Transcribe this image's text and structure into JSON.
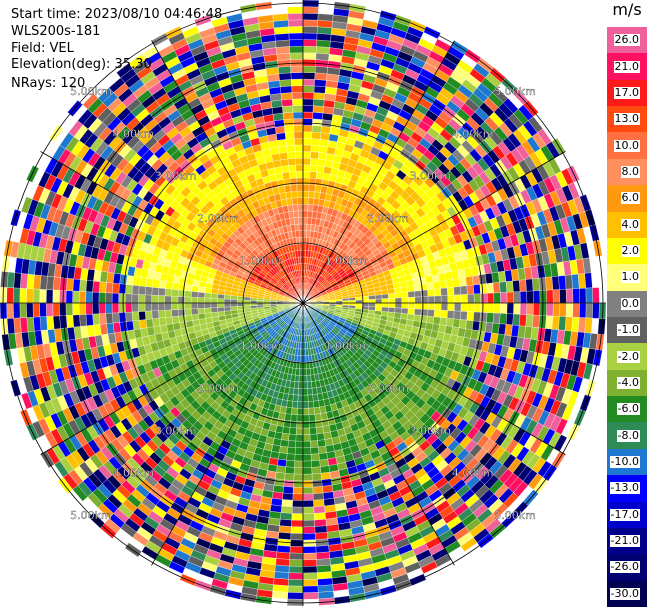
{
  "header": {
    "start_time": "Start time: 2023/08/10 04:46:48",
    "instrument": "WLS200s-181",
    "field": "Field: VEL",
    "elevation": "Elevation(deg): 35.30",
    "nrays": "NRays: 120"
  },
  "legend": {
    "unit": "m/s",
    "bins": [
      {
        "label": "26.0",
        "color": "#f0609a"
      },
      {
        "label": "21.0",
        "color": "#ff1060"
      },
      {
        "label": "17.0",
        "color": "#ff1a1a"
      },
      {
        "label": "13.0",
        "color": "#ff4a10"
      },
      {
        "label": "10.0",
        "color": "#ff7040"
      },
      {
        "label": "8.0",
        "color": "#ff9060"
      },
      {
        "label": "6.0",
        "color": "#ff9a10"
      },
      {
        "label": "4.0",
        "color": "#ffc000"
      },
      {
        "label": "2.0",
        "color": "#ffff00"
      },
      {
        "label": "1.0",
        "color": "#ffff7a"
      },
      {
        "label": "0.0",
        "color": "#808080"
      },
      {
        "label": "-1.0",
        "color": "#606060"
      },
      {
        "label": "-2.0",
        "color": "#a8d040"
      },
      {
        "label": "-4.0",
        "color": "#80b030"
      },
      {
        "label": "-6.0",
        "color": "#228b22"
      },
      {
        "label": "-8.0",
        "color": "#2e8b57"
      },
      {
        "label": "-10.0",
        "color": "#1e78d0"
      },
      {
        "label": "-13.0",
        "color": "#0000ff"
      },
      {
        "label": "-17.0",
        "color": "#0000cd"
      },
      {
        "label": "-21.0",
        "color": "#00008b"
      },
      {
        "label": "-26.0",
        "color": "#000070"
      },
      {
        "label": "-30.0",
        "color": "#000050"
      }
    ]
  },
  "range_rings": {
    "labels": [
      "1.00km",
      "2.00km",
      "3.00km",
      "4.00km",
      "5.00km"
    ]
  }
}
